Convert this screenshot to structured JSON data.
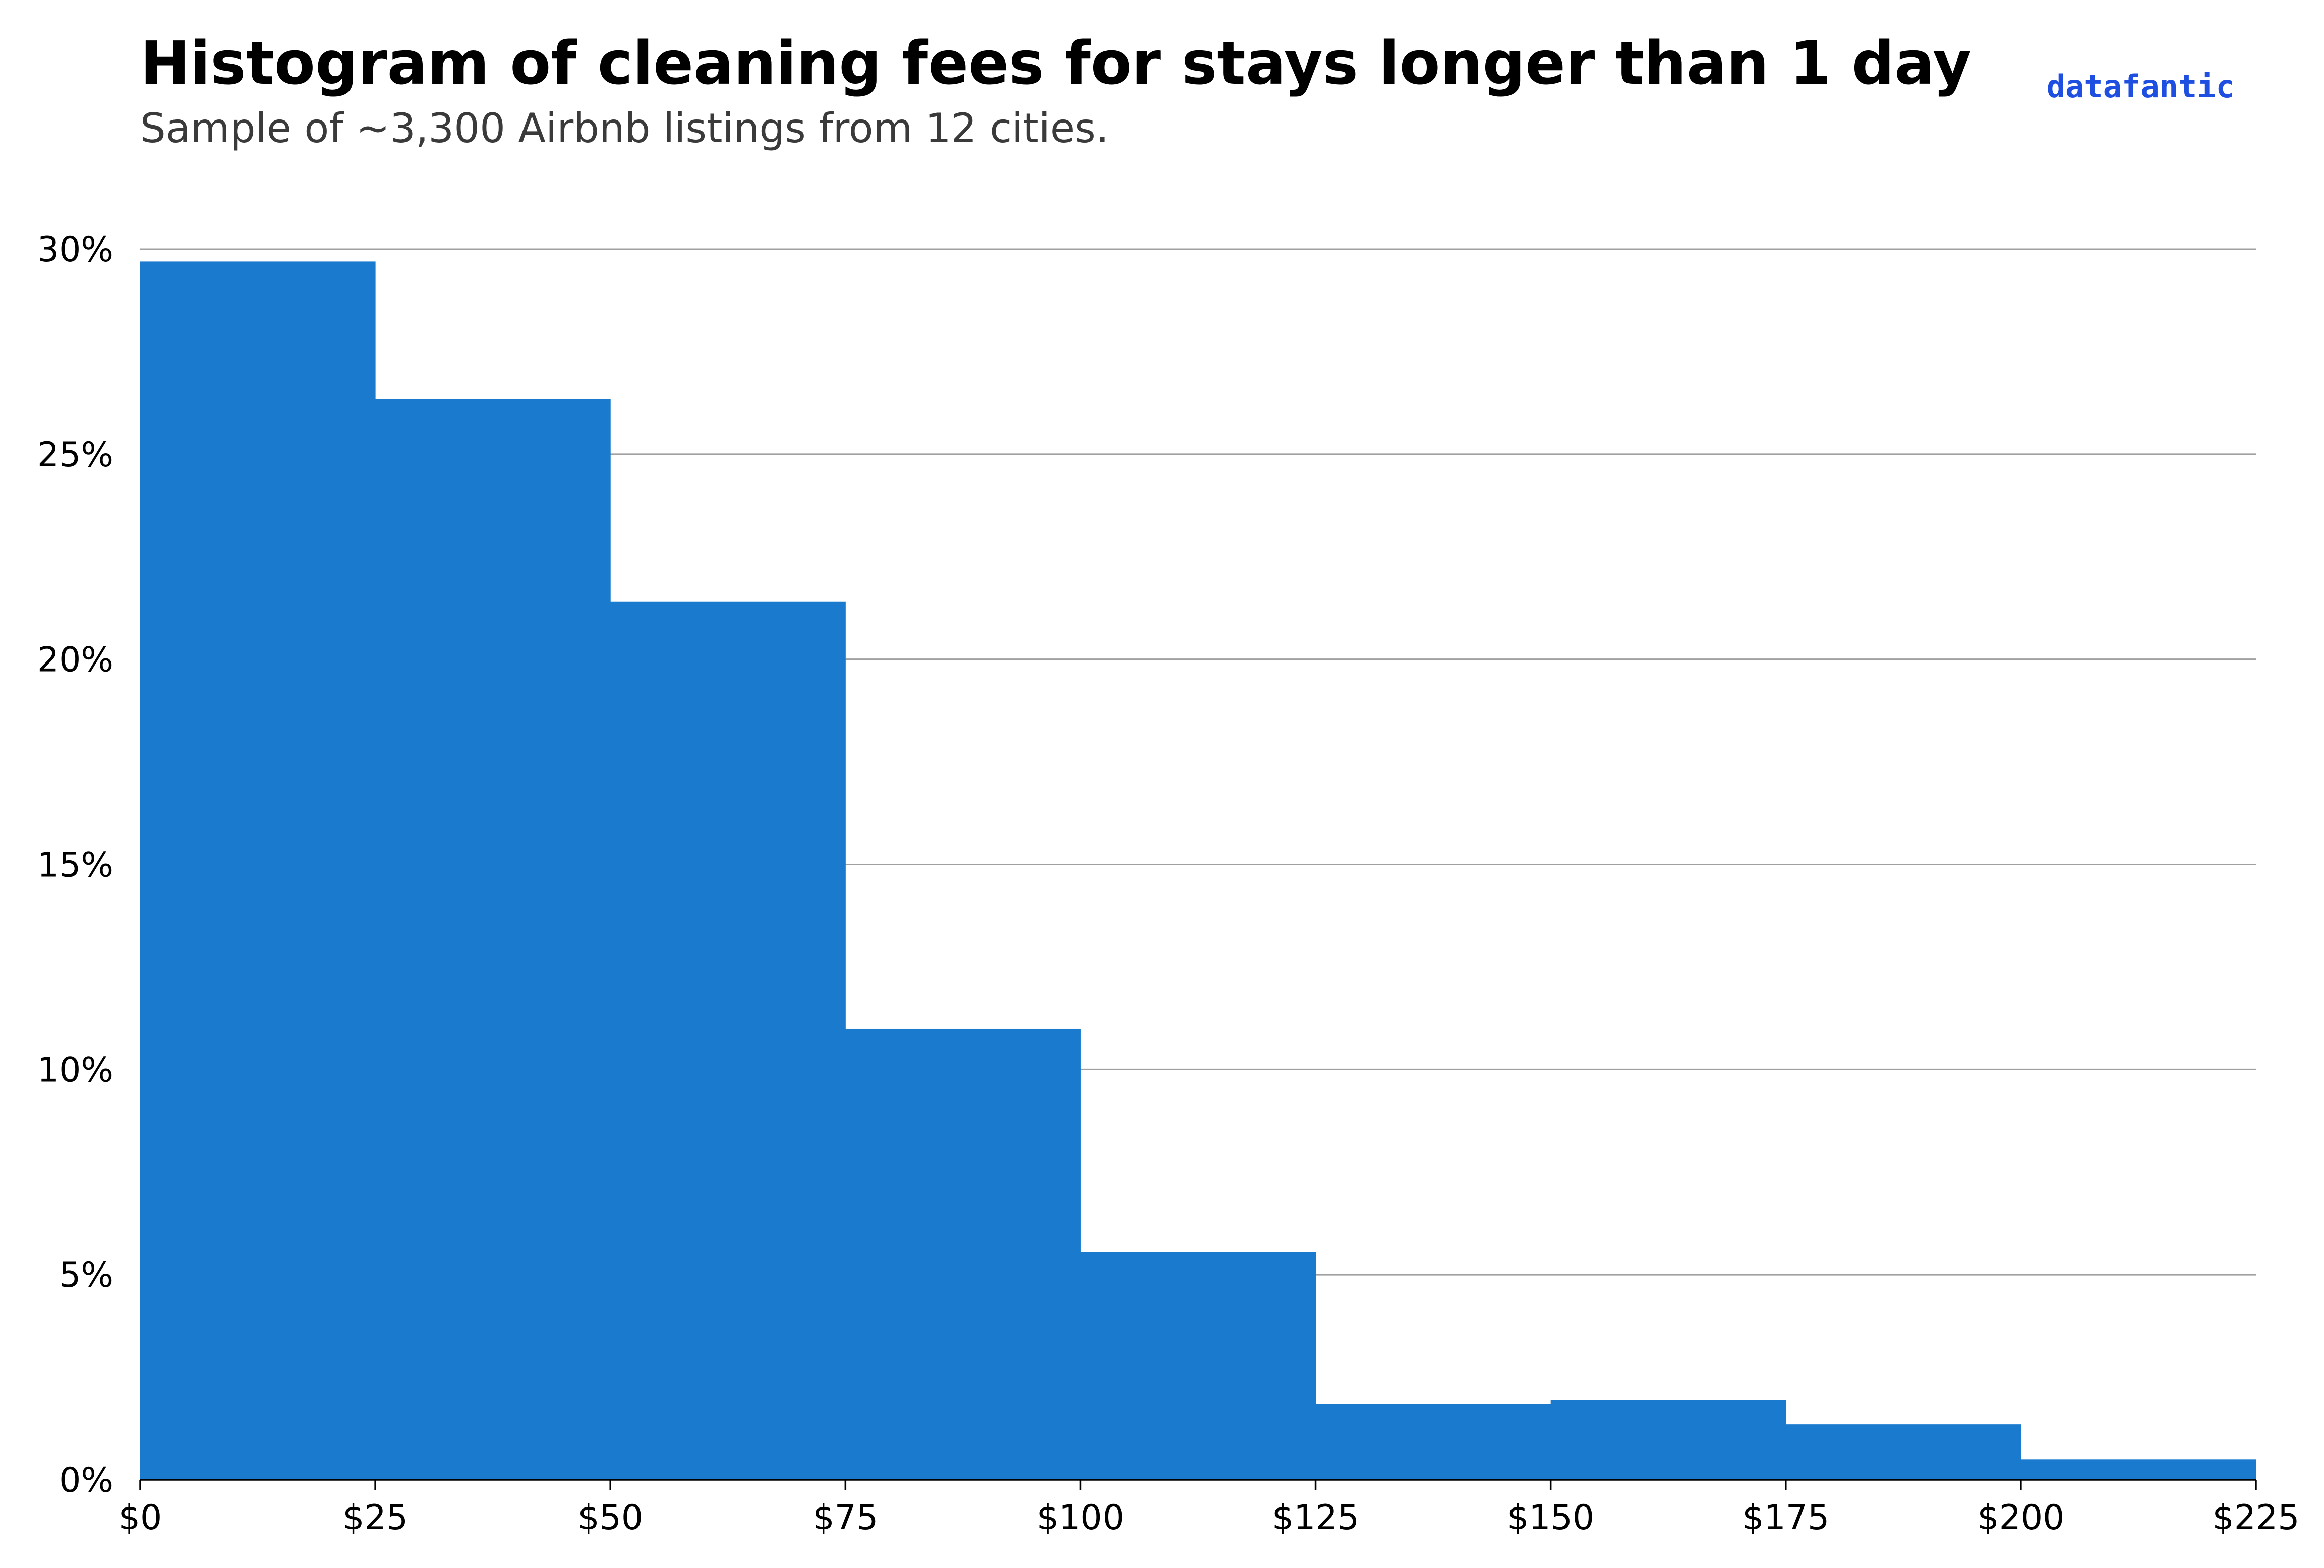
{
  "chart_data": {
    "type": "bar",
    "title": "Histogram of cleaning fees for stays longer than 1 day",
    "subtitle": "Sample of ~3,300 Airbnb listings from 12 cities.",
    "brand": "datafantic",
    "xlabel": "",
    "ylabel": "",
    "bins": [
      {
        "start": 0,
        "end": 25,
        "value": 29.7
      },
      {
        "start": 25,
        "end": 50,
        "value": 26.35
      },
      {
        "start": 50,
        "end": 75,
        "value": 21.4
      },
      {
        "start": 75,
        "end": 100,
        "value": 11.0
      },
      {
        "start": 100,
        "end": 125,
        "value": 5.55
      },
      {
        "start": 125,
        "end": 150,
        "value": 1.85
      },
      {
        "start": 150,
        "end": 175,
        "value": 1.95
      },
      {
        "start": 175,
        "end": 200,
        "value": 1.35
      },
      {
        "start": 200,
        "end": 225,
        "value": 0.5
      }
    ],
    "xlim": [
      0,
      225
    ],
    "ylim": [
      0,
      30
    ],
    "x_ticks": [
      0,
      25,
      50,
      75,
      100,
      125,
      150,
      175,
      200,
      225
    ],
    "x_tick_labels": [
      "$0",
      "$25",
      "$50",
      "$75",
      "$100",
      "$125",
      "$150",
      "$175",
      "$200",
      "$225"
    ],
    "y_ticks": [
      0,
      5,
      10,
      15,
      20,
      25,
      30
    ],
    "y_tick_labels": [
      "0%",
      "5%",
      "10%",
      "15%",
      "20%",
      "25%",
      "30%"
    ],
    "grid": "horizontal",
    "legend": "none",
    "bar_color": "#1a7acd",
    "grid_color": "#a0a0a0",
    "subtitle_color": "#3a3a3a",
    "brand_color": "#1f4fe0"
  }
}
